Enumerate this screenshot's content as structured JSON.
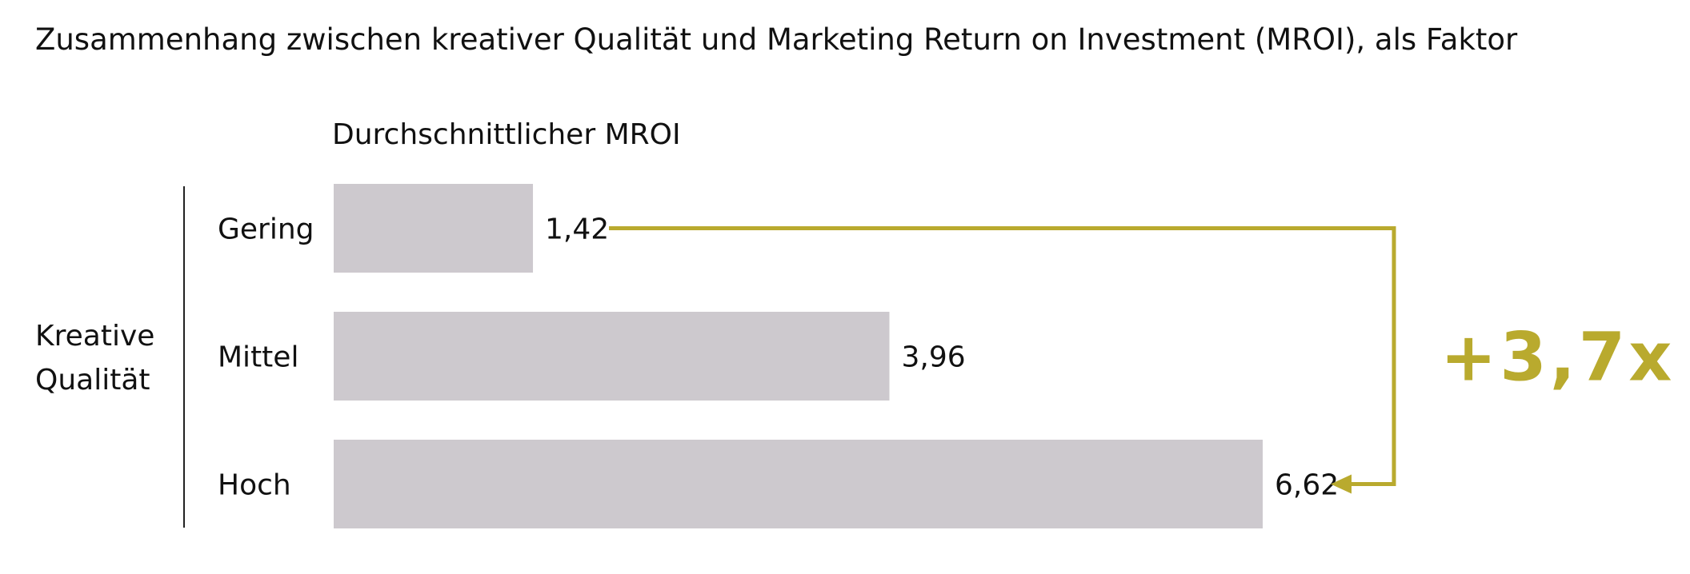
{
  "chart_data": {
    "type": "bar",
    "orientation": "horizontal",
    "title": "Zusammenhang zwischen kreativer Qualität und Marketing Return on Investment (MROI), als Faktor",
    "value_header": "Durchschnittlicher MROI",
    "ylabel_lines": [
      "Kreative",
      "Qualität"
    ],
    "categories": [
      "Gering",
      "Mittel",
      "Hoch"
    ],
    "values": [
      1.42,
      3.96,
      6.62
    ],
    "value_labels": [
      "1,42",
      "3,96",
      "6,62"
    ],
    "xlim": [
      0,
      6.62
    ],
    "grid": false,
    "legend": "none",
    "annotation": {
      "text": "+3,7x",
      "from_category": "Gering",
      "to_category": "Hoch"
    },
    "colors": {
      "bar": "#cdc9ce",
      "accent": "#b9aa2e",
      "text": "#111111",
      "axis": "#222222"
    }
  }
}
